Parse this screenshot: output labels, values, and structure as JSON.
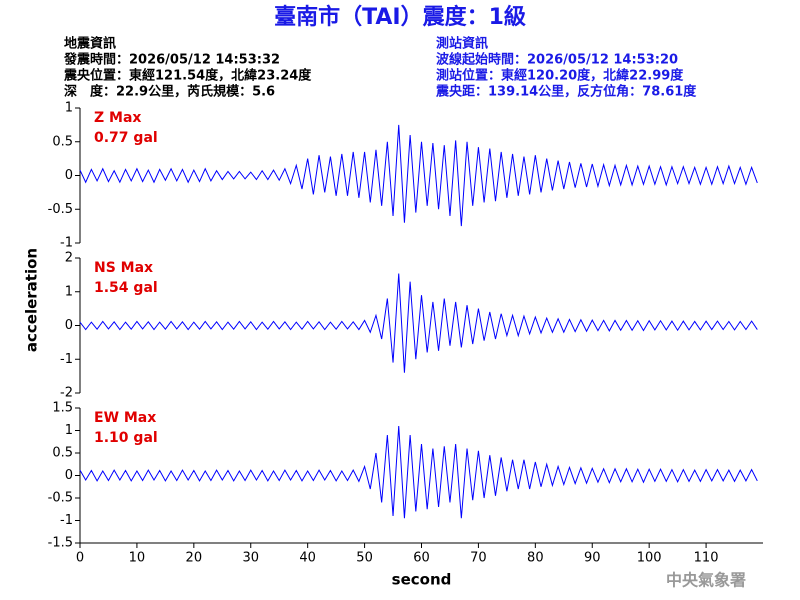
{
  "header": {
    "title": "臺南市（TAI）震度：1級",
    "left": [
      "地震資訊",
      "發震時間：2026/05/12 14:53:32",
      "震央位置：東經121.54度，北緯23.24度",
      "深　度：22.9公里，芮氏規模：5.6"
    ],
    "right": [
      "測站資訊",
      "波線起始時間：2026/05/12 14:53:20",
      "測站位置：東經120.20度，北緯22.99度",
      "震央距：139.14公里，反方位角：78.61度"
    ]
  },
  "footer": "中央氣象署",
  "chart_data": [
    {
      "type": "line",
      "title": "Z Max",
      "subtitle": "0.77 gal",
      "color": "#0000ff",
      "xlim": [
        0,
        120
      ],
      "ylim": [
        -1,
        1
      ],
      "yticks": [
        -1,
        -0.5,
        0,
        0.5,
        1
      ],
      "x": [
        0,
        1,
        2,
        3,
        4,
        5,
        6,
        7,
        8,
        9,
        10,
        11,
        12,
        13,
        14,
        15,
        16,
        17,
        18,
        19,
        20,
        21,
        22,
        23,
        24,
        25,
        26,
        27,
        28,
        29,
        30,
        31,
        32,
        33,
        34,
        35,
        36,
        37,
        38,
        39,
        40,
        41,
        42,
        43,
        44,
        45,
        46,
        47,
        48,
        49,
        50,
        51,
        52,
        53,
        54,
        55,
        56,
        57,
        58,
        59,
        60,
        61,
        62,
        63,
        64,
        65,
        66,
        67,
        68,
        69,
        70,
        71,
        72,
        73,
        74,
        75,
        76,
        77,
        78,
        79,
        80,
        81,
        82,
        83,
        84,
        85,
        86,
        87,
        88,
        89,
        90,
        91,
        92,
        93,
        94,
        95,
        96,
        97,
        98,
        99,
        100,
        101,
        102,
        103,
        104,
        105,
        106,
        107,
        108,
        109,
        110,
        111,
        112,
        113,
        114,
        115,
        116,
        117,
        118,
        119
      ],
      "values": [
        0.08,
        -0.1,
        0.09,
        -0.08,
        0.1,
        -0.09,
        0.07,
        -0.1,
        0.09,
        -0.08,
        0.1,
        -0.09,
        0.08,
        -0.1,
        0.09,
        -0.07,
        0.1,
        -0.08,
        0.09,
        -0.1,
        0.08,
        -0.09,
        0.1,
        -0.08,
        0.07,
        -0.06,
        0.06,
        -0.05,
        0.06,
        -0.05,
        0.05,
        -0.06,
        0.07,
        -0.06,
        0.08,
        -0.07,
        0.1,
        -0.12,
        0.15,
        -0.2,
        0.25,
        -0.28,
        0.3,
        -0.25,
        0.28,
        -0.3,
        0.32,
        -0.3,
        0.35,
        -0.33,
        0.35,
        -0.4,
        0.38,
        -0.45,
        0.5,
        -0.6,
        0.75,
        -0.7,
        0.6,
        -0.55,
        0.5,
        -0.45,
        0.48,
        -0.5,
        0.45,
        -0.6,
        0.52,
        -0.75,
        0.5,
        -0.45,
        0.42,
        -0.4,
        0.4,
        -0.38,
        0.35,
        -0.33,
        0.32,
        -0.3,
        0.28,
        -0.28,
        0.3,
        -0.25,
        0.25,
        -0.22,
        0.22,
        -0.2,
        0.2,
        -0.18,
        0.18,
        -0.17,
        0.17,
        -0.16,
        0.16,
        -0.15,
        0.15,
        -0.14,
        0.15,
        -0.14,
        0.14,
        -0.13,
        0.14,
        -0.13,
        0.13,
        -0.14,
        0.13,
        -0.12,
        0.13,
        -0.12,
        0.12,
        -0.13,
        0.12,
        -0.13,
        0.13,
        -0.12,
        0.14,
        -0.12,
        0.12,
        -0.13,
        0.12,
        -0.11
      ]
    },
    {
      "type": "line",
      "title": "NS Max",
      "subtitle": "1.54 gal",
      "color": "#0000ff",
      "ylabel": "acceleration",
      "xlim": [
        0,
        120
      ],
      "ylim": [
        -2,
        2
      ],
      "yticks": [
        -2,
        -1,
        0,
        1,
        2
      ],
      "x": [
        0,
        1,
        2,
        3,
        4,
        5,
        6,
        7,
        8,
        9,
        10,
        11,
        12,
        13,
        14,
        15,
        16,
        17,
        18,
        19,
        20,
        21,
        22,
        23,
        24,
        25,
        26,
        27,
        28,
        29,
        30,
        31,
        32,
        33,
        34,
        35,
        36,
        37,
        38,
        39,
        40,
        41,
        42,
        43,
        44,
        45,
        46,
        47,
        48,
        49,
        50,
        51,
        52,
        53,
        54,
        55,
        56,
        57,
        58,
        59,
        60,
        61,
        62,
        63,
        64,
        65,
        66,
        67,
        68,
        69,
        70,
        71,
        72,
        73,
        74,
        75,
        76,
        77,
        78,
        79,
        80,
        81,
        82,
        83,
        84,
        85,
        86,
        87,
        88,
        89,
        90,
        91,
        92,
        93,
        94,
        95,
        96,
        97,
        98,
        99,
        100,
        101,
        102,
        103,
        104,
        105,
        106,
        107,
        108,
        109,
        110,
        111,
        112,
        113,
        114,
        115,
        116,
        117,
        118,
        119
      ],
      "values": [
        0.1,
        -0.12,
        0.1,
        -0.11,
        0.12,
        -0.1,
        0.11,
        -0.12,
        0.1,
        -0.11,
        0.12,
        -0.1,
        0.11,
        -0.12,
        0.1,
        -0.11,
        0.12,
        -0.1,
        0.11,
        -0.12,
        0.1,
        -0.11,
        0.12,
        -0.1,
        0.11,
        -0.12,
        0.1,
        -0.11,
        0.12,
        -0.1,
        0.11,
        -0.12,
        0.1,
        -0.11,
        0.12,
        -0.1,
        0.11,
        -0.12,
        0.1,
        -0.11,
        0.12,
        -0.1,
        0.11,
        -0.12,
        0.1,
        -0.11,
        0.12,
        -0.1,
        0.11,
        -0.12,
        0.15,
        -0.2,
        0.3,
        -0.4,
        0.8,
        -1.1,
        1.54,
        -1.4,
        1.3,
        -1.0,
        0.9,
        -0.8,
        0.7,
        -0.75,
        0.8,
        -0.6,
        0.7,
        -0.65,
        0.6,
        -0.55,
        0.5,
        -0.45,
        0.4,
        -0.4,
        0.35,
        -0.3,
        0.3,
        -0.3,
        0.28,
        -0.25,
        0.25,
        -0.22,
        0.22,
        -0.2,
        0.2,
        -0.2,
        0.18,
        -0.18,
        0.17,
        -0.17,
        0.16,
        -0.15,
        0.15,
        -0.16,
        0.15,
        -0.14,
        0.15,
        -0.14,
        0.14,
        -0.15,
        0.14,
        -0.13,
        0.14,
        -0.13,
        0.13,
        -0.14,
        0.13,
        -0.13,
        0.12,
        -0.13,
        0.13,
        -0.12,
        0.13,
        -0.12,
        0.12,
        -0.13,
        0.12,
        -0.12,
        0.13,
        -0.12
      ]
    },
    {
      "type": "line",
      "title": "EW Max",
      "subtitle": "1.10 gal",
      "color": "#0000ff",
      "xlabel": "second",
      "xlim": [
        0,
        120
      ],
      "ylim": [
        -1.5,
        1.5
      ],
      "yticks": [
        -1.5,
        -1,
        -0.5,
        0,
        0.5,
        1,
        1.5
      ],
      "xticks": [
        0,
        10,
        20,
        30,
        40,
        50,
        60,
        70,
        80,
        90,
        100,
        110
      ],
      "x": [
        0,
        1,
        2,
        3,
        4,
        5,
        6,
        7,
        8,
        9,
        10,
        11,
        12,
        13,
        14,
        15,
        16,
        17,
        18,
        19,
        20,
        21,
        22,
        23,
        24,
        25,
        26,
        27,
        28,
        29,
        30,
        31,
        32,
        33,
        34,
        35,
        36,
        37,
        38,
        39,
        40,
        41,
        42,
        43,
        44,
        45,
        46,
        47,
        48,
        49,
        50,
        51,
        52,
        53,
        54,
        55,
        56,
        57,
        58,
        59,
        60,
        61,
        62,
        63,
        64,
        65,
        66,
        67,
        68,
        69,
        70,
        71,
        72,
        73,
        74,
        75,
        76,
        77,
        78,
        79,
        80,
        81,
        82,
        83,
        84,
        85,
        86,
        87,
        88,
        89,
        90,
        91,
        92,
        93,
        94,
        95,
        96,
        97,
        98,
        99,
        100,
        101,
        102,
        103,
        104,
        105,
        106,
        107,
        108,
        109,
        110,
        111,
        112,
        113,
        114,
        115,
        116,
        117,
        118,
        119
      ],
      "values": [
        0.12,
        -0.1,
        0.11,
        -0.12,
        0.1,
        -0.11,
        0.12,
        -0.1,
        0.11,
        -0.12,
        0.1,
        -0.11,
        0.12,
        -0.1,
        0.11,
        -0.12,
        0.1,
        -0.11,
        0.12,
        -0.1,
        0.11,
        -0.12,
        0.1,
        -0.11,
        0.12,
        -0.1,
        0.11,
        -0.12,
        0.1,
        -0.11,
        0.12,
        -0.1,
        0.11,
        -0.12,
        0.1,
        -0.11,
        0.12,
        -0.1,
        0.11,
        -0.12,
        0.1,
        -0.11,
        0.12,
        -0.1,
        0.11,
        -0.12,
        0.1,
        -0.11,
        0.12,
        -0.13,
        0.2,
        -0.3,
        0.5,
        -0.6,
        0.9,
        -0.9,
        1.1,
        -0.95,
        0.9,
        -0.8,
        0.7,
        -0.75,
        0.6,
        -0.7,
        0.65,
        -0.6,
        0.7,
        -0.95,
        0.6,
        -0.55,
        0.55,
        -0.5,
        0.45,
        -0.45,
        0.4,
        -0.35,
        0.35,
        -0.3,
        0.35,
        -0.3,
        0.3,
        -0.25,
        0.25,
        -0.22,
        0.2,
        -0.2,
        0.18,
        -0.18,
        0.17,
        -0.17,
        0.16,
        -0.15,
        0.15,
        -0.16,
        0.15,
        -0.14,
        0.15,
        -0.14,
        0.14,
        -0.15,
        0.14,
        -0.13,
        0.14,
        -0.13,
        0.13,
        -0.14,
        0.13,
        -0.13,
        0.12,
        -0.13,
        0.13,
        -0.12,
        0.13,
        -0.12,
        0.12,
        -0.13,
        0.12,
        -0.12,
        0.13,
        -0.12
      ]
    }
  ]
}
